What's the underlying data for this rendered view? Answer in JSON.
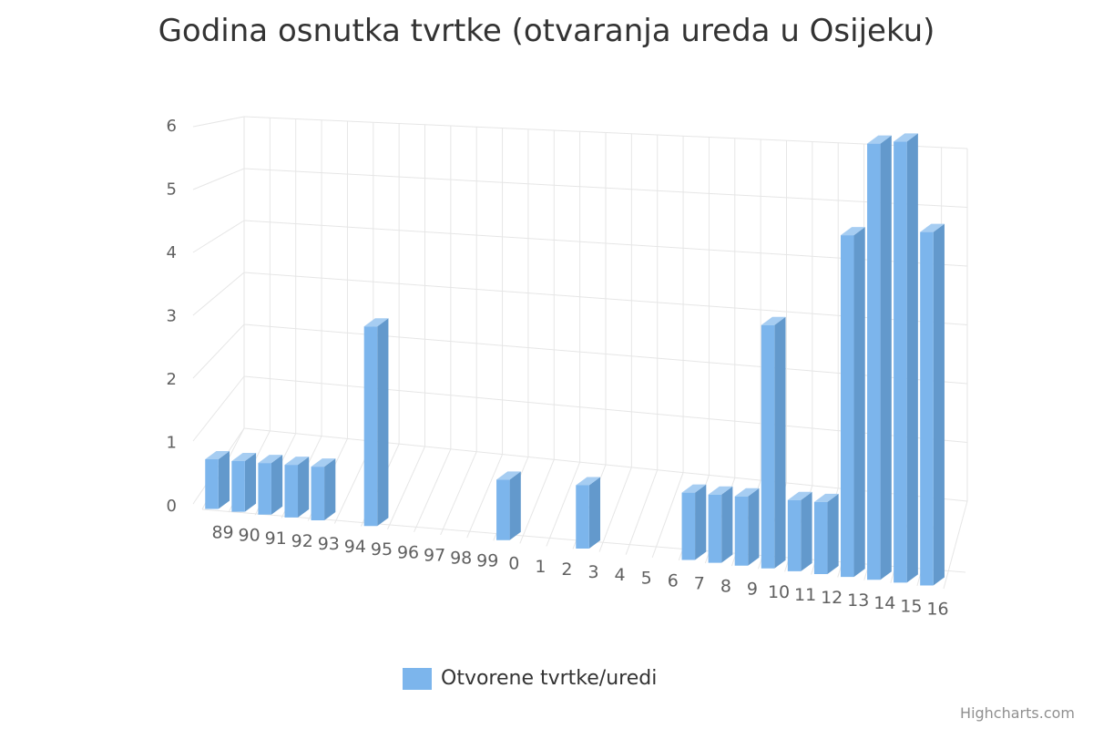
{
  "chart_data": {
    "type": "bar",
    "title": "Godina osnutka tvrtke (otvaranja ureda u Osijeku)",
    "xlabel": "",
    "ylabel": "",
    "categories": [
      "89",
      "90",
      "91",
      "92",
      "93",
      "94",
      "95",
      "96",
      "97",
      "98",
      "99",
      "0",
      "1",
      "2",
      "3",
      "4",
      "5",
      "6",
      "7",
      "8",
      "9",
      "10",
      "11",
      "12",
      "13",
      "14",
      "15",
      "16"
    ],
    "series": [
      {
        "name": "Otvorene tvrtke/uredi",
        "values": [
          1,
          1,
          1,
          1,
          1,
          0,
          3,
          0,
          0,
          0,
          0,
          1,
          0,
          0,
          1,
          0,
          0,
          0,
          1,
          1,
          1,
          3,
          1,
          1,
          4,
          5,
          5,
          4
        ]
      }
    ],
    "ylim": [
      0,
      6
    ],
    "yticks": [
      0,
      1,
      2,
      3,
      4,
      5,
      6
    ],
    "grid": true,
    "legend": "bottom-center",
    "color": "#7cb5ec",
    "credits": "Highcharts.com"
  }
}
